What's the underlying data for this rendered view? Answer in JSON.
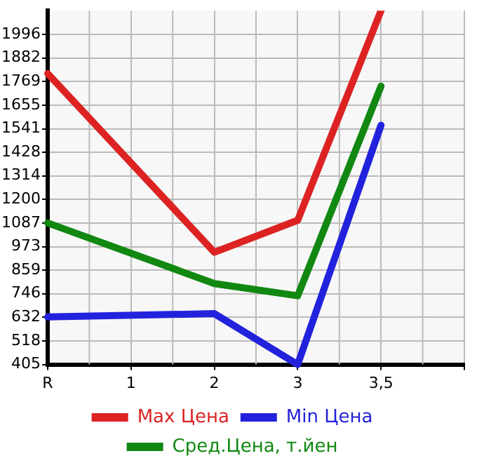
{
  "chart_data": {
    "type": "line",
    "categories": [
      "R",
      "1",
      "2",
      "3",
      "3,5",
      null
    ],
    "series": [
      {
        "name": "Max Цена",
        "color": "#dd2222",
        "values": [
          1807,
          null,
          946,
          1100,
          2110,
          null
        ]
      },
      {
        "name": "Min Цена",
        "color": "#2222dd",
        "values": [
          634,
          null,
          650,
          405,
          1558,
          null
        ]
      },
      {
        "name": "Сред.Цена, т.йен",
        "color": "#118811",
        "values": [
          1087,
          null,
          795,
          736,
          1746,
          null
        ]
      }
    ],
    "ylim": [
      405,
      2110
    ],
    "yticks": [
      405,
      518,
      632,
      746,
      859,
      973,
      1087,
      1200,
      1314,
      1428,
      1541,
      1655,
      1769,
      1882,
      1996
    ],
    "grid": true,
    "legend": "bottom",
    "marker": "none",
    "line_style": "solid"
  }
}
